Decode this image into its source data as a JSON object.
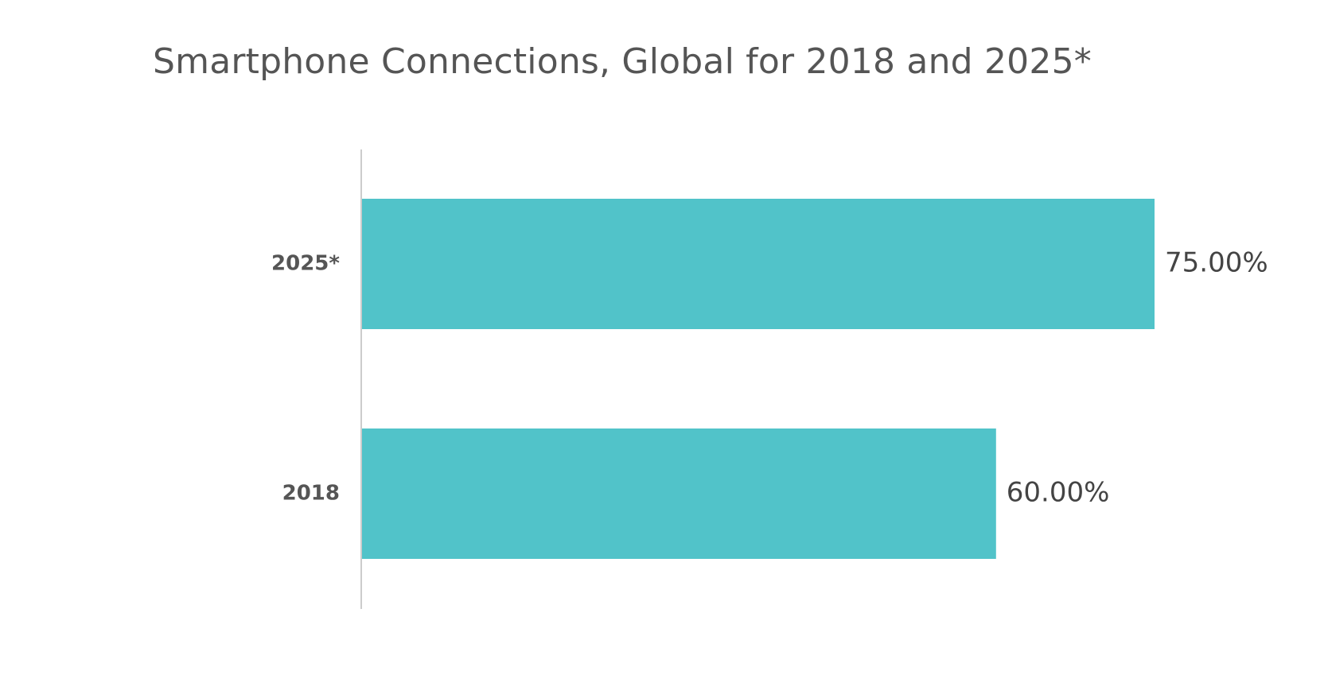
{
  "chart_data": {
    "type": "bar",
    "orientation": "horizontal",
    "title": "Smartphone Connections, Global for 2018 and 2025*",
    "categories": [
      "2025*",
      "2018"
    ],
    "values": [
      75.0,
      60.0
    ],
    "value_labels": [
      "75.00%",
      "60.00%"
    ],
    "xlim": [
      0,
      75
    ],
    "grid": false,
    "legend": "none",
    "colors": {
      "bar": "#51c3c9",
      "axis": "#cccccc",
      "title": "#555555",
      "category_label": "#555555",
      "value_label": "#444444"
    }
  }
}
